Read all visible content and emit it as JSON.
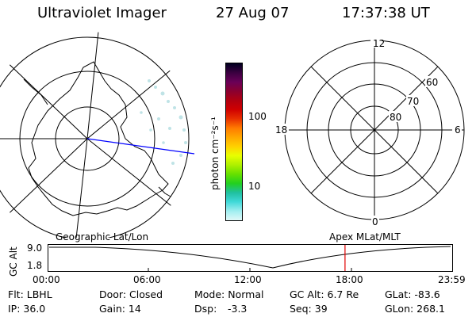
{
  "header": {
    "instrument": "Ultraviolet Imager",
    "date": "27 Aug 07",
    "time": "17:37:38 UT"
  },
  "colorbar": {
    "label": "photon cm⁻²s⁻¹",
    "ticks": [
      {
        "label": "100",
        "value": 100
      },
      {
        "label": "10",
        "value": 10
      }
    ],
    "colors": [
      "#000020",
      "#3a0040",
      "#6a0058",
      "#8a0030",
      "#b00010",
      "#d00000",
      "#e83000",
      "#ff7a00",
      "#ffa800",
      "#ffd000",
      "#e8ff00",
      "#aef000",
      "#66e000",
      "#22d020",
      "#20c0a0",
      "#40d8d8",
      "#a0eef0",
      "#e0f8f8"
    ]
  },
  "left_map": {
    "name": "Geographic Lat/Lon"
  },
  "right_map": {
    "name": "Apex MLat/MLT",
    "mlt_labels": [
      "12",
      "18",
      "6",
      "0"
    ],
    "lat_labels": [
      "60",
      "70",
      "80"
    ]
  },
  "alt_panel": {
    "axis_label": "GC Alt",
    "y_ticks": [
      "9.0",
      "1.8"
    ],
    "x_ticks": [
      "00:00",
      "06:00",
      "12:00",
      "18:00",
      "23:59"
    ],
    "current_time_hours": 17.63
  },
  "info": {
    "flt": "Flt: LBHL",
    "ip": "IP: 36.0",
    "door": "Door: Closed",
    "gain": "Gain: 14",
    "mode": "Mode: Normal",
    "dsp": "Dsp:",
    "dsp_value": "-3.3",
    "gc_alt": "GC Alt: 6.7 Re",
    "seq": "Seq: 39",
    "glat": "GLat: -83.6",
    "glon": "GLon: 268.1"
  }
}
